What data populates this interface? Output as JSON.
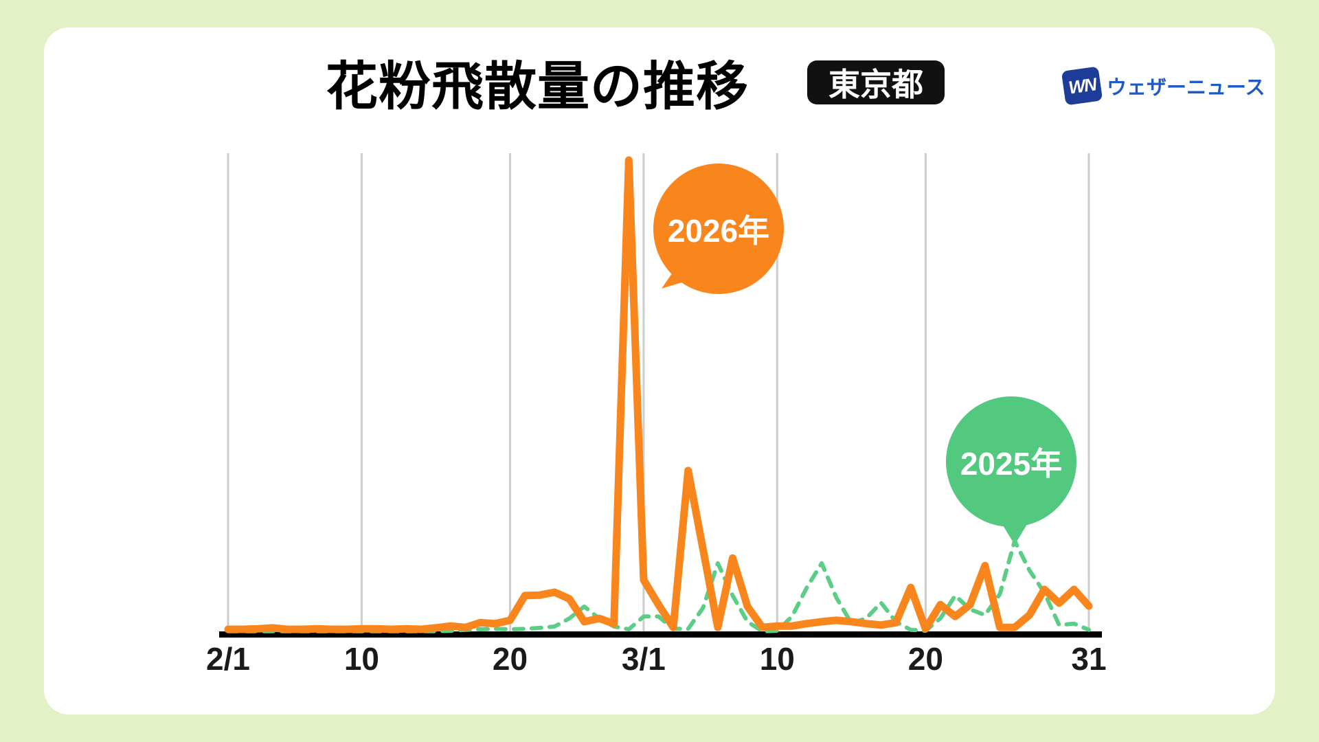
{
  "page": {
    "background": "#E2F1C6",
    "card_background": "#FFFFFF"
  },
  "header": {
    "title": "花粉飛散量の推移",
    "region_badge": "東京都",
    "badge_bg": "#111111",
    "logo": {
      "mark": "WN",
      "mark_bg": "#1E3D99",
      "text": "ウェザーニュース",
      "text_color": "#1E5BC6"
    }
  },
  "chart_data": {
    "type": "line",
    "title": "花粉飛散量の推移(東京都)",
    "xlabel": "",
    "ylabel": "",
    "y_axis_labels_shown": false,
    "y_scale_note": "relative units 0-100 estimated from pixels; no y-axis labels in source",
    "grid": "vertical-only",
    "legend_position": "speech-bubbles-on-plot",
    "x_tick_labels": [
      "2/1",
      "10",
      "20",
      "3/1",
      "10",
      "20",
      "31"
    ],
    "x_tick_day_indices": [
      0,
      9,
      19,
      28,
      37,
      47,
      58
    ],
    "dates": [
      "2/1",
      "2/2",
      "2/3",
      "2/4",
      "2/5",
      "2/6",
      "2/7",
      "2/8",
      "2/9",
      "2/10",
      "2/11",
      "2/12",
      "2/13",
      "2/14",
      "2/15",
      "2/16",
      "2/17",
      "2/18",
      "2/19",
      "2/20",
      "2/21",
      "2/22",
      "2/23",
      "2/24",
      "2/25",
      "2/26",
      "2/27",
      "2/28",
      "3/1",
      "3/2",
      "3/3",
      "3/4",
      "3/5",
      "3/6",
      "3/7",
      "3/8",
      "3/9",
      "3/10",
      "3/11",
      "3/12",
      "3/13",
      "3/14",
      "3/15",
      "3/16",
      "3/17",
      "3/18",
      "3/19",
      "3/20",
      "3/21",
      "3/22",
      "3/23",
      "3/24",
      "3/25",
      "3/26",
      "3/27",
      "3/28",
      "3/29",
      "3/30",
      "3/31"
    ],
    "series": [
      {
        "name": "2026年",
        "dom_id": "line-2026",
        "color": "#F8861D",
        "style": "solid",
        "values": [
          1.3,
          1.3,
          1.4,
          1.6,
          1.3,
          1.3,
          1.4,
          1.3,
          1.3,
          1.4,
          1.4,
          1.3,
          1.4,
          1.3,
          1.6,
          2.0,
          1.7,
          2.7,
          2.5,
          3.2,
          8.4,
          8.5,
          9.1,
          7.7,
          2.9,
          3.6,
          2.5,
          100,
          11.7,
          6.5,
          1.7,
          34.7,
          18.2,
          1.7,
          16.3,
          6.1,
          1.7,
          2.0,
          2.0,
          2.5,
          2.9,
          3.2,
          2.9,
          2.5,
          2.2,
          2.7,
          10.1,
          1.4,
          6.5,
          4.0,
          6.5,
          14.7,
          1.7,
          1.7,
          4.3,
          9.7,
          6.8,
          9.7,
          6.2
        ]
      },
      {
        "name": "2025年",
        "dom_id": "line-2025",
        "color": "#5CCD86",
        "style": "dashed",
        "values": [
          0.9,
          0.9,
          0.9,
          0.9,
          0.9,
          0.9,
          0.9,
          0.9,
          0.9,
          0.9,
          0.9,
          0.9,
          0.9,
          0.9,
          0.9,
          1.0,
          1.2,
          1.3,
          1.4,
          1.3,
          1.4,
          1.6,
          1.9,
          3.6,
          6.1,
          3.6,
          1.9,
          1.3,
          4.0,
          4.0,
          1.4,
          1.4,
          5.8,
          15.2,
          8.4,
          2.9,
          0.9,
          1.0,
          4.0,
          10.1,
          15.2,
          7.9,
          2.6,
          3.6,
          6.9,
          2.9,
          1.2,
          1.0,
          3.6,
          8.4,
          5.5,
          4.3,
          8.7,
          19.9,
          13.7,
          9.0,
          2.2,
          2.5,
          1.2
        ]
      }
    ],
    "annotations": [
      {
        "label": "2026年",
        "series": "2026年",
        "color": "#F8861D",
        "shape": "speech-bubble"
      },
      {
        "label": "2025年",
        "series": "2025年",
        "color": "#53C87F",
        "shape": "speech-bubble"
      }
    ]
  }
}
